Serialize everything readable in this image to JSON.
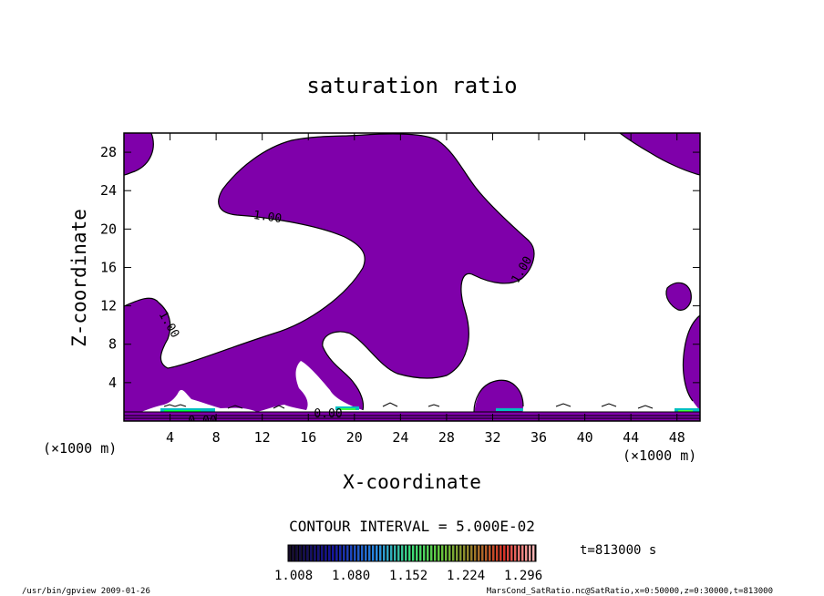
{
  "chart_data": {
    "type": "heatmap",
    "title": "saturation ratio",
    "xlabel": "X-coordinate",
    "ylabel": "Z-coordinate",
    "x_unit_label": "(×1000 m)",
    "z_unit_label": "(×1000 m)",
    "xlim": [
      0,
      50
    ],
    "ylim": [
      0,
      30
    ],
    "x_ticks": [
      4,
      8,
      12,
      16,
      20,
      24,
      28,
      32,
      36,
      40,
      44,
      48
    ],
    "y_ticks": [
      4,
      8,
      12,
      16,
      20,
      24,
      28
    ],
    "contour_level": "1.00",
    "contour_labels": [
      "1.00",
      "1.00",
      "1.00",
      "0.00",
      "0.00"
    ],
    "fill_color": "#7f00aa",
    "contour_interval": "CONTOUR INTERVAL = 5.000E-02",
    "colorbar": {
      "min": 1.008,
      "max": 1.296,
      "labels": [
        "1.008",
        "1.080",
        "1.152",
        "1.224",
        "1.296"
      ]
    },
    "time_label": "t=813000 s"
  },
  "footer": {
    "left": "/usr/bin/gpview  2009-01-26",
    "right": "MarsCond_SatRatio.nc@SatRatio,x=0:50000,z=0:30000,t=813000"
  }
}
